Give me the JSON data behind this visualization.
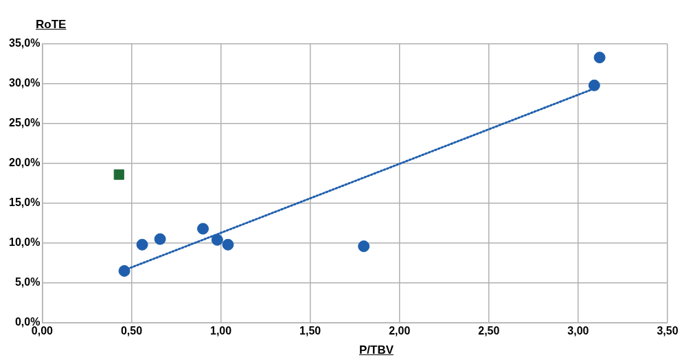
{
  "chart_data": {
    "type": "scatter",
    "xlabel": "P/TBV",
    "ylabel": "RoTE",
    "series": [
      {
        "color": "#1f5fad",
        "marker": "circle",
        "x": [
          0.46,
          0.56,
          0.66,
          0.9,
          0.98,
          1.04,
          1.8,
          3.09,
          3.12
        ],
        "values": [
          6.5,
          9.8,
          10.5,
          11.8,
          10.4,
          9.8,
          9.6,
          29.8,
          33.3
        ]
      },
      {
        "color": "#1e6b35",
        "marker": "square",
        "x": [
          0.43
        ],
        "values": [
          18.6
        ]
      },
      {
        "type": "line",
        "color": "#1f5fad",
        "marker": "none",
        "line_style": "dotted",
        "x": [
          0.46,
          3.09
        ],
        "values": [
          6.6,
          29.4
        ]
      }
    ],
    "xlim": [
      0,
      3.5
    ],
    "ylim": [
      0,
      35
    ],
    "xticks": [
      {
        "value": 0,
        "label": "0,00"
      },
      {
        "value": 0.5,
        "label": "0,50"
      },
      {
        "value": 1,
        "label": "1,00"
      },
      {
        "value": 1.5,
        "label": "1,50"
      },
      {
        "value": 2,
        "label": "2,00"
      },
      {
        "value": 2.5,
        "label": "2,50"
      },
      {
        "value": 3,
        "label": "3,00"
      },
      {
        "value": 3.5,
        "label": "3,50"
      }
    ],
    "yticks": [
      {
        "value": 0,
        "label": "0,0%"
      },
      {
        "value": 5,
        "label": "5,0%"
      },
      {
        "value": 10,
        "label": "10,0%"
      },
      {
        "value": 15,
        "label": "15,0%"
      },
      {
        "value": 20,
        "label": "20,0%"
      },
      {
        "value": 25,
        "label": "25,0%"
      },
      {
        "value": 30,
        "label": "30,0%"
      },
      {
        "value": 35,
        "label": "35,0%"
      }
    ],
    "grid": true,
    "legend": false
  }
}
